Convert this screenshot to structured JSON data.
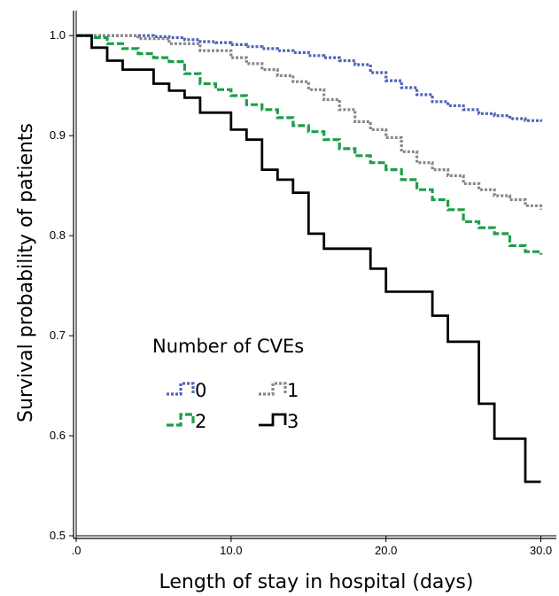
{
  "chart_data": {
    "type": "line",
    "step": true,
    "title": "",
    "xlabel": "Length of stay in hospital (days)",
    "ylabel": "Survival probability of patients",
    "xlim": [
      0,
      31
    ],
    "ylim": [
      0.5,
      1.025
    ],
    "x_ticks": [
      0,
      10,
      20,
      30
    ],
    "x_tick_labels": [
      ".0",
      "10.0",
      "20.0",
      "30.0"
    ],
    "y_ticks": [
      0.5,
      0.6,
      0.7,
      0.8,
      0.9,
      1.0
    ],
    "y_tick_labels": [
      "0.5",
      "0.6",
      "0.7",
      "0.8",
      "0.9",
      "1.0"
    ],
    "grid": false,
    "legend": {
      "title": "Number of CVEs",
      "placement": "center-left"
    },
    "series": [
      {
        "name": "0",
        "color": "#4F63B8",
        "dash": "dotted",
        "points": [
          [
            0,
            1.0
          ],
          [
            5,
            0.999
          ],
          [
            6,
            0.998
          ],
          [
            7,
            0.996
          ],
          [
            8,
            0.994
          ],
          [
            9,
            0.993
          ],
          [
            10,
            0.991
          ],
          [
            11,
            0.989
          ],
          [
            12,
            0.987
          ],
          [
            13,
            0.985
          ],
          [
            14,
            0.983
          ],
          [
            15,
            0.98
          ],
          [
            16,
            0.978
          ],
          [
            17,
            0.975
          ],
          [
            18,
            0.971
          ],
          [
            19,
            0.963
          ],
          [
            20,
            0.955
          ],
          [
            21,
            0.948
          ],
          [
            22,
            0.941
          ],
          [
            23,
            0.934
          ],
          [
            24,
            0.93
          ],
          [
            25,
            0.926
          ],
          [
            26,
            0.922
          ],
          [
            27,
            0.92
          ],
          [
            28,
            0.917
          ],
          [
            29,
            0.915
          ],
          [
            30,
            0.914
          ]
        ]
      },
      {
        "name": "1",
        "color": "#888888",
        "dash": "dotted",
        "points": [
          [
            0,
            1.0
          ],
          [
            4,
            0.997
          ],
          [
            6,
            0.992
          ],
          [
            8,
            0.985
          ],
          [
            10,
            0.978
          ],
          [
            11,
            0.972
          ],
          [
            12,
            0.966
          ],
          [
            13,
            0.96
          ],
          [
            14,
            0.954
          ],
          [
            15,
            0.946
          ],
          [
            16,
            0.936
          ],
          [
            17,
            0.926
          ],
          [
            18,
            0.914
          ],
          [
            19,
            0.906
          ],
          [
            20,
            0.898
          ],
          [
            21,
            0.884
          ],
          [
            22,
            0.873
          ],
          [
            23,
            0.866
          ],
          [
            24,
            0.86
          ],
          [
            25,
            0.852
          ],
          [
            26,
            0.846
          ],
          [
            27,
            0.84
          ],
          [
            28,
            0.836
          ],
          [
            29,
            0.83
          ],
          [
            30,
            0.826
          ]
        ]
      },
      {
        "name": "2",
        "color": "#1E9E4A",
        "dash": "dashed",
        "points": [
          [
            0,
            1.0
          ],
          [
            1,
            0.998
          ],
          [
            2,
            0.992
          ],
          [
            3,
            0.987
          ],
          [
            4,
            0.982
          ],
          [
            5,
            0.978
          ],
          [
            6,
            0.974
          ],
          [
            7,
            0.962
          ],
          [
            8,
            0.952
          ],
          [
            9,
            0.946
          ],
          [
            10,
            0.94
          ],
          [
            11,
            0.931
          ],
          [
            12,
            0.926
          ],
          [
            13,
            0.918
          ],
          [
            14,
            0.91
          ],
          [
            15,
            0.904
          ],
          [
            16,
            0.896
          ],
          [
            17,
            0.887
          ],
          [
            18,
            0.88
          ],
          [
            19,
            0.873
          ],
          [
            20,
            0.866
          ],
          [
            21,
            0.856
          ],
          [
            22,
            0.846
          ],
          [
            23,
            0.836
          ],
          [
            24,
            0.826
          ],
          [
            25,
            0.814
          ],
          [
            26,
            0.808
          ],
          [
            27,
            0.802
          ],
          [
            28,
            0.79
          ],
          [
            29,
            0.784
          ],
          [
            30,
            0.781
          ]
        ]
      },
      {
        "name": "3",
        "color": "#000000",
        "dash": "solid",
        "points": [
          [
            0,
            1.0
          ],
          [
            1,
            0.988
          ],
          [
            2,
            0.975
          ],
          [
            3,
            0.966
          ],
          [
            5,
            0.952
          ],
          [
            6,
            0.945
          ],
          [
            7,
            0.938
          ],
          [
            8,
            0.923
          ],
          [
            10,
            0.906
          ],
          [
            11,
            0.896
          ],
          [
            12,
            0.866
          ],
          [
            13,
            0.856
          ],
          [
            14,
            0.843
          ],
          [
            15,
            0.802
          ],
          [
            16,
            0.787
          ],
          [
            19,
            0.767
          ],
          [
            20,
            0.744
          ],
          [
            23,
            0.72
          ],
          [
            24,
            0.694
          ],
          [
            26,
            0.632
          ],
          [
            27,
            0.597
          ],
          [
            29,
            0.554
          ],
          [
            30,
            0.554
          ]
        ]
      }
    ]
  }
}
